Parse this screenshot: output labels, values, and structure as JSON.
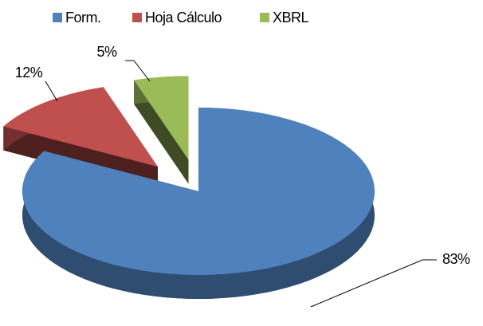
{
  "chart_data": {
    "type": "pie",
    "three_d": true,
    "categories": [
      "Form.",
      "Hoja Cálculo",
      "XBRL"
    ],
    "values": [
      83,
      12,
      5
    ],
    "value_labels": [
      "83%",
      "12%",
      "5%"
    ],
    "colors": [
      "#4f81bd",
      "#c0504d",
      "#9bbb59"
    ],
    "legend": "top"
  }
}
